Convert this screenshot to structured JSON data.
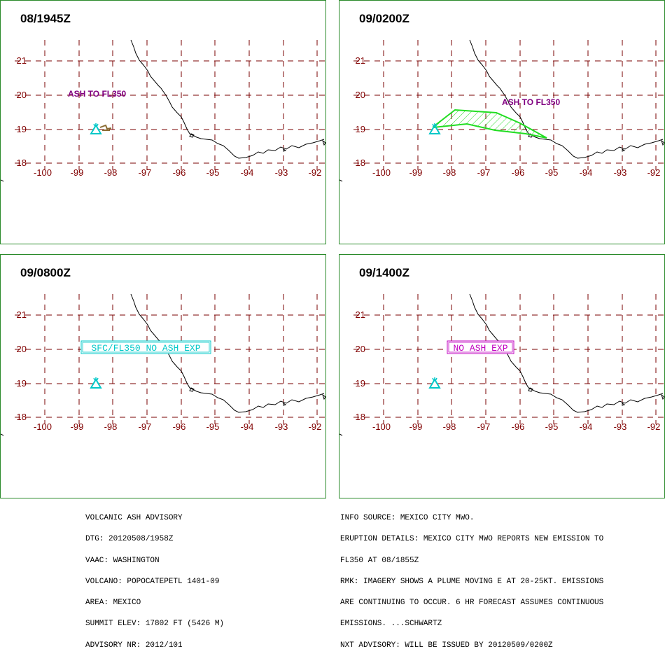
{
  "map_grid": {
    "lon_ticks": [
      "-100",
      "-99",
      "-98",
      "-97",
      "-96",
      "-95",
      "-94",
      "-93",
      "-92"
    ],
    "lat_ticks": [
      "21",
      "20",
      "19",
      "18"
    ]
  },
  "colors": {
    "frame": "#2a8a2a",
    "grid": "#7a0000",
    "label": "#800000",
    "coast": "#000000",
    "ash_text": "#800080",
    "ash_polygon": "#22dd22",
    "volcano": "#00c8c8",
    "nil_box_cyan": "#00c8c8",
    "nil_box_magenta": "#c000c0"
  },
  "panels": [
    {
      "id": "p1",
      "time": "08/1945Z",
      "label": "ASH TO FL350",
      "label_type": "plain",
      "volcano_icon": "volcano-triangle",
      "plume": "small-drift-east"
    },
    {
      "id": "p2",
      "time": "09/0200Z",
      "label": "ASH TO FL350",
      "label_type": "plain",
      "volcano_icon": "volcano-triangle",
      "plume": "hatched-polygon"
    },
    {
      "id": "p3",
      "time": "09/0800Z",
      "label": "SFC/FL350 NO ASH EXP",
      "label_type": "boxed",
      "volcano_icon": "volcano-triangle",
      "plume": "none"
    },
    {
      "id": "p4",
      "time": "09/1400Z",
      "label": "NO ASH EXP",
      "label_type": "boxed",
      "volcano_icon": "volcano-triangle",
      "plume": "none"
    }
  ],
  "advisory_left": [
    "VOLCANIC ASH ADVISORY",
    "DTG: 20120508/1958Z",
    "VAAC: WASHINGTON",
    "VOLCANO: POPOCATEPETL 1401-09",
    "AREA: MEXICO",
    "SUMMIT ELEV: 17802 FT (5426 M)",
    "ADVISORY NR: 2012/101"
  ],
  "advisory_right": [
    "INFO SOURCE: MEXICO CITY MWO.",
    "ERUPTION DETAILS: MEXICO CITY MWO REPORTS NEW EMISSION TO",
    "FL350 AT 08/1855Z",
    "RMK: IMAGERY SHOWS A PLUME MOVING E AT 20-25KT. EMISSIONS",
    "ARE CONTINUING TO OCCUR. 6 HR FORECAST ASSUMES CONTINUOUS",
    "EMISSIONS. ...SCHWARTZ",
    "NXT ADVISORY: WILL BE ISSUED BY 20120509/0200Z"
  ]
}
